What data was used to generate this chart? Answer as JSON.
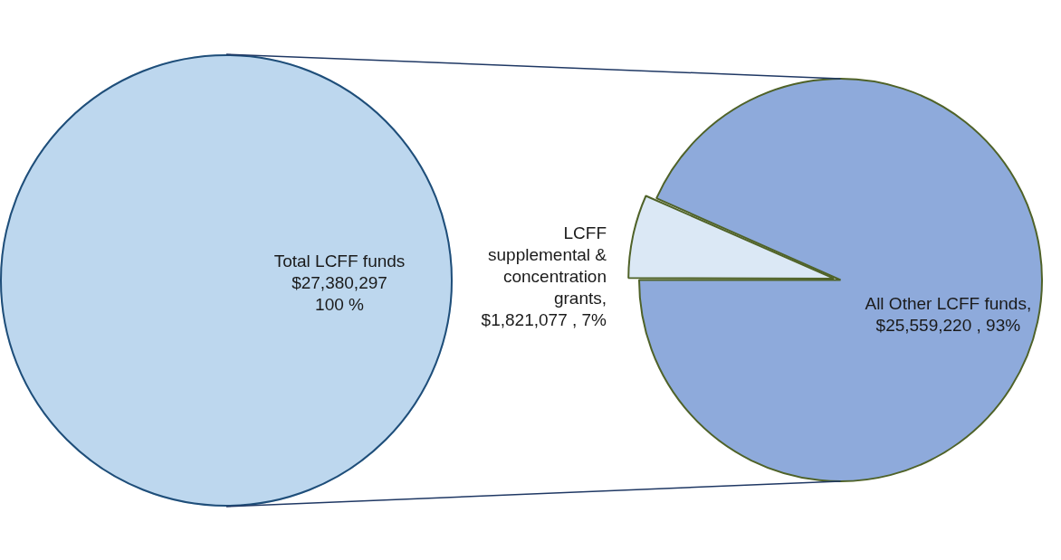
{
  "chart_data": [
    {
      "type": "pie",
      "categories": [
        "Total LCFF funds"
      ],
      "values": [
        27380297
      ],
      "colors": [
        "#bdd7ee"
      ],
      "value_labels": [
        "$27,380,297\n100 %"
      ]
    },
    {
      "type": "pie",
      "categories": [
        "LCFF supplemental & concentration grants",
        "All Other LCFF funds"
      ],
      "values": [
        1821077,
        25559220
      ],
      "colors": [
        "#dbe8f5",
        "#8eaadb"
      ],
      "value_labels": [
        "$1,821,077 , 7%",
        "$25,559,220 , 93%"
      ],
      "annotations": [
        ",",
        ","
      ]
    }
  ]
}
